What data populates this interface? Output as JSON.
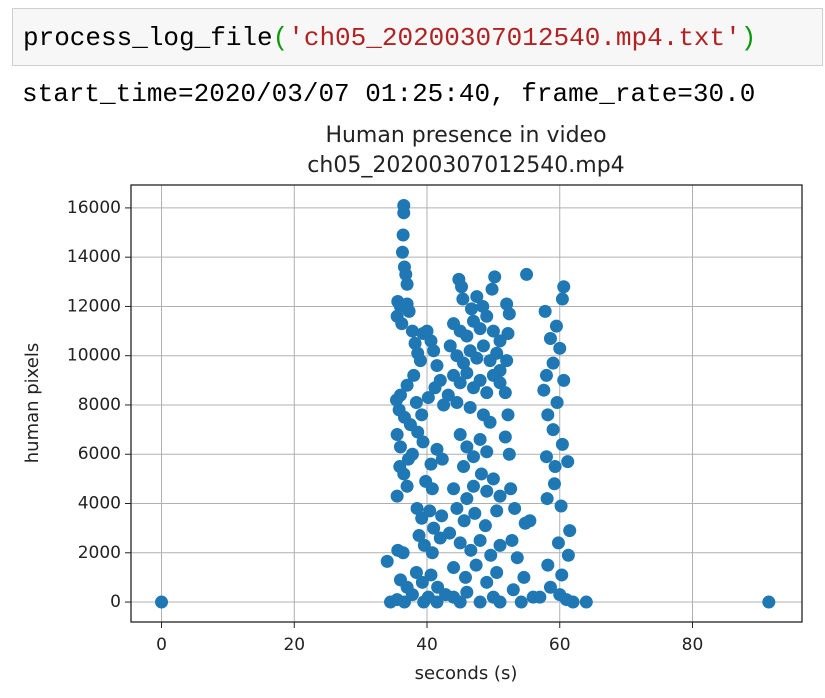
{
  "code": {
    "tokens": [
      "process_log_file",
      "(",
      "'ch05_20200307012540.mp4.txt'",
      ")"
    ]
  },
  "output": "start_time=2020/03/07 01:25:40, frame_rate=30.0",
  "chart_data": {
    "type": "scatter",
    "title": "Human presence in video",
    "subtitle": "ch05_20200307012540.mp4",
    "x_label": "seconds (s)",
    "y_label": "human pixels",
    "color": "#1f77b4",
    "grid": true,
    "xlim": [
      -4.6,
      96.5
    ],
    "ylim": [
      -810,
      16930
    ],
    "xticks": [
      0,
      20,
      40,
      60,
      80
    ],
    "yticks": [
      0,
      2000,
      4000,
      6000,
      8000,
      10000,
      12000,
      14000,
      16000
    ],
    "x": [
      36.5,
      36.5,
      36.4,
      36.3,
      36.6,
      36.8,
      37,
      35.6,
      36,
      37,
      35.5,
      36.2,
      37.3,
      37.8,
      38.2,
      38.6,
      39,
      39.4,
      40,
      40.6,
      41,
      41.5,
      42,
      38,
      37,
      36,
      35.4,
      35.8,
      36.6,
      37.5,
      38.4,
      39.2,
      40.2,
      41.2,
      42.5,
      43.2,
      35.5,
      36,
      37.2,
      35.9,
      36.5,
      37,
      35.5,
      37.8,
      38.6,
      39.4,
      40.6,
      41.5,
      42.3,
      39.8,
      40.8,
      38.5,
      39.2,
      40.4,
      41,
      42.2,
      38.8,
      39.6,
      40.8,
      42,
      35.6,
      36.4,
      34,
      36,
      37,
      38.4,
      39.3,
      40.6,
      41.6,
      34.5,
      35.5,
      36.6,
      37.8,
      39.5,
      40.2,
      41.5,
      42.8,
      44.8,
      45.2,
      45.4,
      46.7,
      47.5,
      48.4,
      49.8,
      50.2,
      44,
      45,
      46,
      47,
      48,
      49,
      50,
      51,
      43.5,
      44.5,
      45.5,
      46.5,
      47.5,
      48.5,
      49.5,
      50.5,
      51,
      44,
      45,
      46,
      47,
      48,
      49,
      50,
      51,
      44.5,
      46.5,
      48.5,
      49.5,
      45,
      46,
      48,
      49,
      47,
      45.5,
      48.2,
      50,
      44,
      46,
      47,
      49,
      51,
      44.5,
      45.6,
      47.2,
      48.8,
      50.5,
      43.4,
      45,
      46.6,
      48,
      49.6,
      51,
      44,
      45.8,
      47.4,
      49,
      50.5,
      44,
      45,
      46,
      48,
      50,
      51,
      55,
      52,
      52.4,
      52.2,
      52,
      51.8,
      52.2,
      51.8,
      52.4,
      52.6,
      53.2,
      54.8,
      55.5,
      52.8,
      53.6,
      54.6,
      53,
      54.2,
      56,
      60.6,
      60.4,
      59.5,
      57.8,
      58.6,
      60,
      59,
      58,
      60.6,
      57.6,
      59.6,
      58.2,
      59,
      60.4,
      58,
      59.3,
      61.2,
      59.2,
      58.1,
      60.2,
      61.5,
      59.8,
      61.3,
      58.2,
      60.3,
      58.6,
      60,
      61,
      57,
      62,
      64,
      0,
      91.5
    ],
    "values": [
      16100,
      15800,
      14900,
      14200,
      13600,
      13300,
      12900,
      12200,
      12000,
      12100,
      11600,
      11300,
      11800,
      11000,
      10500,
      10100,
      9800,
      10900,
      11000,
      10600,
      10200,
      9600,
      9000,
      9200,
      8800,
      8400,
      8200,
      7800,
      7500,
      7200,
      8100,
      7600,
      8300,
      8700,
      8000,
      8400,
      6800,
      6300,
      5800,
      5500,
      5200,
      4700,
      4300,
      6000,
      6900,
      6500,
      5600,
      6200,
      5800,
      4900,
      4600,
      3800,
      3400,
      3700,
      3000,
      3500,
      2700,
      2300,
      2000,
      2600,
      2100,
      2000,
      1650,
      900,
      600,
      1200,
      800,
      1100,
      600,
      0,
      100,
      0,
      300,
      0,
      200,
      0,
      300,
      13100,
      12800,
      12300,
      11900,
      12400,
      12000,
      12700,
      13200,
      11300,
      11000,
      10800,
      11400,
      11100,
      11600,
      11000,
      10600,
      10400,
      10000,
      9700,
      10200,
      9900,
      10400,
      9800,
      10100,
      9400,
      9200,
      8900,
      9300,
      8700,
      9000,
      8500,
      9200,
      8900,
      8100,
      7900,
      7600,
      7300,
      6800,
      6300,
      6600,
      6100,
      5900,
      5500,
      5200,
      5000,
      4600,
      4200,
      4700,
      4500,
      4300,
      3800,
      3300,
      3600,
      3100,
      3700,
      2800,
      2400,
      2100,
      2500,
      1900,
      2300,
      1400,
      1000,
      1500,
      800,
      1200,
      200,
      0,
      400,
      0,
      200,
      0,
      13300,
      12100,
      11700,
      10900,
      9800,
      8500,
      7600,
      6700,
      6000,
      4600,
      3800,
      3200,
      3300,
      2500,
      1800,
      1000,
      500,
      0,
      200,
      12800,
      12300,
      11200,
      11800,
      10700,
      10300,
      9700,
      9200,
      9000,
      8600,
      8100,
      7600,
      7000,
      6400,
      5900,
      5500,
      5700,
      4800,
      4200,
      3900,
      2900,
      2400,
      1900,
      1500,
      1100,
      600,
      300,
      100,
      200,
      0,
      0,
      0,
      0
    ]
  }
}
